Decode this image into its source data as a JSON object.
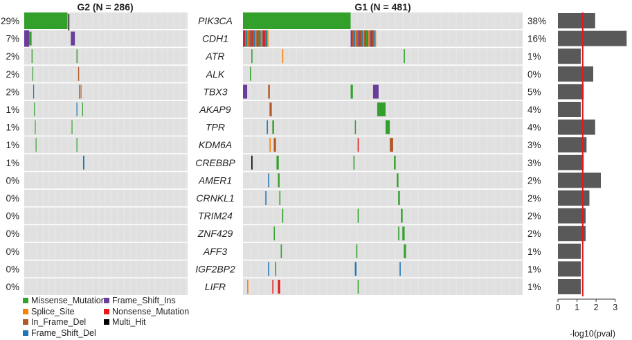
{
  "chart_data": {
    "type": "heatmap",
    "subtype": "co-oncoplot",
    "groups": [
      {
        "title": "G2 (N = 286)",
        "n_samples": 286
      },
      {
        "title": "G1 (N = 481)",
        "n_samples": 481
      }
    ],
    "genes": [
      "PIK3CA",
      "CDH1",
      "ATR",
      "ALK",
      "TBX3",
      "AKAP9",
      "TPR",
      "KDM6A",
      "CREBBP",
      "AMER1",
      "CRNKL1",
      "TRIM24",
      "ZNF429",
      "AFF3",
      "IGF2BP2",
      "LIFR"
    ],
    "left_percent": [
      "29%",
      "7%",
      "2%",
      "2%",
      "2%",
      "1%",
      "1%",
      "1%",
      "1%",
      "0%",
      "0%",
      "0%",
      "0%",
      "0%",
      "0%",
      "0%"
    ],
    "right_percent": [
      "38%",
      "16%",
      "1%",
      "0%",
      "5%",
      "4%",
      "4%",
      "3%",
      "3%",
      "2%",
      "2%",
      "2%",
      "2%",
      "1%",
      "1%",
      "1%"
    ],
    "neg_log10_pval": [
      1.95,
      3.6,
      1.2,
      1.85,
      1.35,
      1.2,
      1.95,
      1.5,
      1.35,
      2.25,
      1.65,
      1.45,
      1.45,
      1.2,
      1.2,
      1.2
    ],
    "pval_threshold": 1.3,
    "pval_axis": {
      "label": "-log10(pval)",
      "ticks": [
        0,
        1,
        2,
        3
      ],
      "range": [
        0,
        3.7
      ]
    },
    "colors": {
      "Missense_Mutation": "#33a02c",
      "Splice_Site": "#ff7f00",
      "In_Frame_Del": "#b15928",
      "Frame_Shift_Del": "#1f78b4",
      "Frame_Shift_Ins": "#6a3d9a",
      "Nonsense_Mutation": "#e31a1c",
      "Multi_Hit": "#000000",
      "background": "#e0e0e0",
      "bar": "#595959",
      "threshold": "#e31a1c"
    },
    "legend": [
      "Missense_Mutation",
      "Splice_Site",
      "In_Frame_Del",
      "Frame_Shift_Del",
      "Frame_Shift_Ins",
      "Nonsense_Mutation",
      "Multi_Hit"
    ]
  }
}
